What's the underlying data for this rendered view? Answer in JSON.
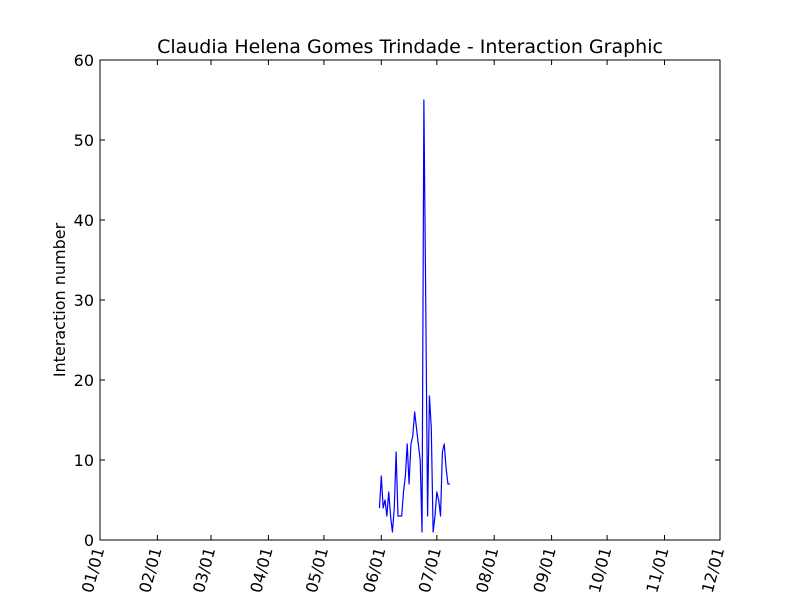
{
  "chart_data": {
    "type": "line",
    "title": "Claudia Helena Gomes Trindade - Interaction Graphic",
    "xlabel": "",
    "ylabel": "Interaction number",
    "xlim": [
      "01/01",
      "12/01"
    ],
    "ylim": [
      0,
      60
    ],
    "yticks": [
      0,
      10,
      20,
      30,
      40,
      50,
      60
    ],
    "xticks": [
      "01/01",
      "02/01",
      "03/01",
      "04/01",
      "05/01",
      "06/01",
      "07/01",
      "08/01",
      "09/01",
      "10/01",
      "11/01",
      "12/01"
    ],
    "grid": false,
    "legend": "none",
    "series": [
      {
        "color": "#0000ff",
        "x": [
          "05/31",
          "06/01",
          "06/02",
          "06/03",
          "06/04",
          "06/05",
          "06/06",
          "06/07",
          "06/08",
          "06/09",
          "06/10",
          "06/11",
          "06/12",
          "06/13",
          "06/14",
          "06/15",
          "06/16",
          "06/17",
          "06/18",
          "06/19",
          "06/20",
          "06/21",
          "06/22",
          "06/23",
          "06/24",
          "06/25",
          "06/26",
          "06/27",
          "06/28",
          "06/29",
          "06/30",
          "07/01",
          "07/02",
          "07/03",
          "07/04",
          "07/05",
          "07/06",
          "07/07",
          "07/08"
        ],
        "y": [
          4,
          8,
          4,
          5,
          3,
          6,
          3,
          1,
          4,
          11,
          3,
          3,
          3,
          6,
          8,
          12,
          7,
          12,
          13,
          16,
          14,
          12,
          10,
          1,
          55,
          30,
          3,
          18,
          14,
          1,
          3,
          6,
          5,
          3,
          11,
          12,
          9,
          7,
          7
        ]
      }
    ]
  }
}
